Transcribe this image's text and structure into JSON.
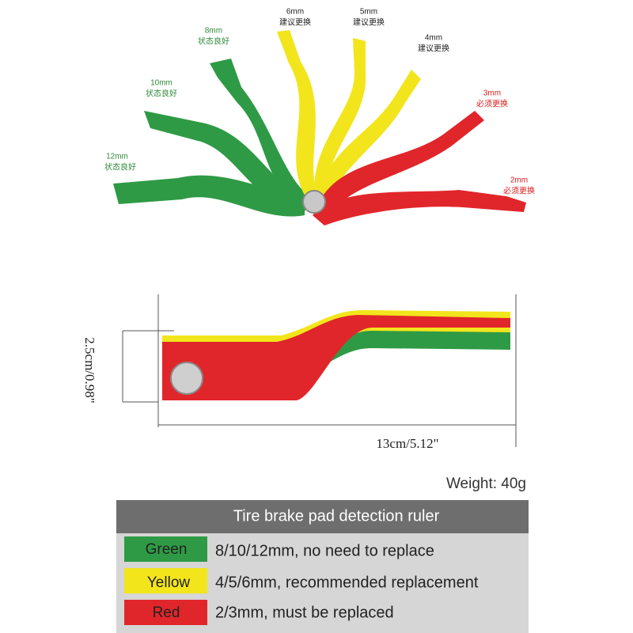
{
  "blades": [
    {
      "size": "12mm",
      "status": "状态良好"
    },
    {
      "size": "10mm",
      "status": "状态良好"
    },
    {
      "size": "8mm",
      "status": "状态良好"
    },
    {
      "size": "6mm",
      "status": "建议更换"
    },
    {
      "size": "5mm",
      "status": "建议更换"
    },
    {
      "size": "4mm",
      "status": "建议更换"
    },
    {
      "size": "3mm",
      "status": "必须更换"
    },
    {
      "size": "2mm",
      "status": "必须更换"
    }
  ],
  "dimensions": {
    "height": "2.5cm/0.98\"",
    "length": "13cm/5.12\""
  },
  "weight": "Weight: 40g",
  "table": {
    "title": "Tire brake pad detection ruler",
    "rows": [
      [
        "Green",
        "8/10/12mm, no need to replace"
      ],
      [
        "Yellow",
        "4/5/6mm, recommended replacement"
      ],
      [
        "Red",
        "2/3mm, must be replaced"
      ]
    ]
  }
}
